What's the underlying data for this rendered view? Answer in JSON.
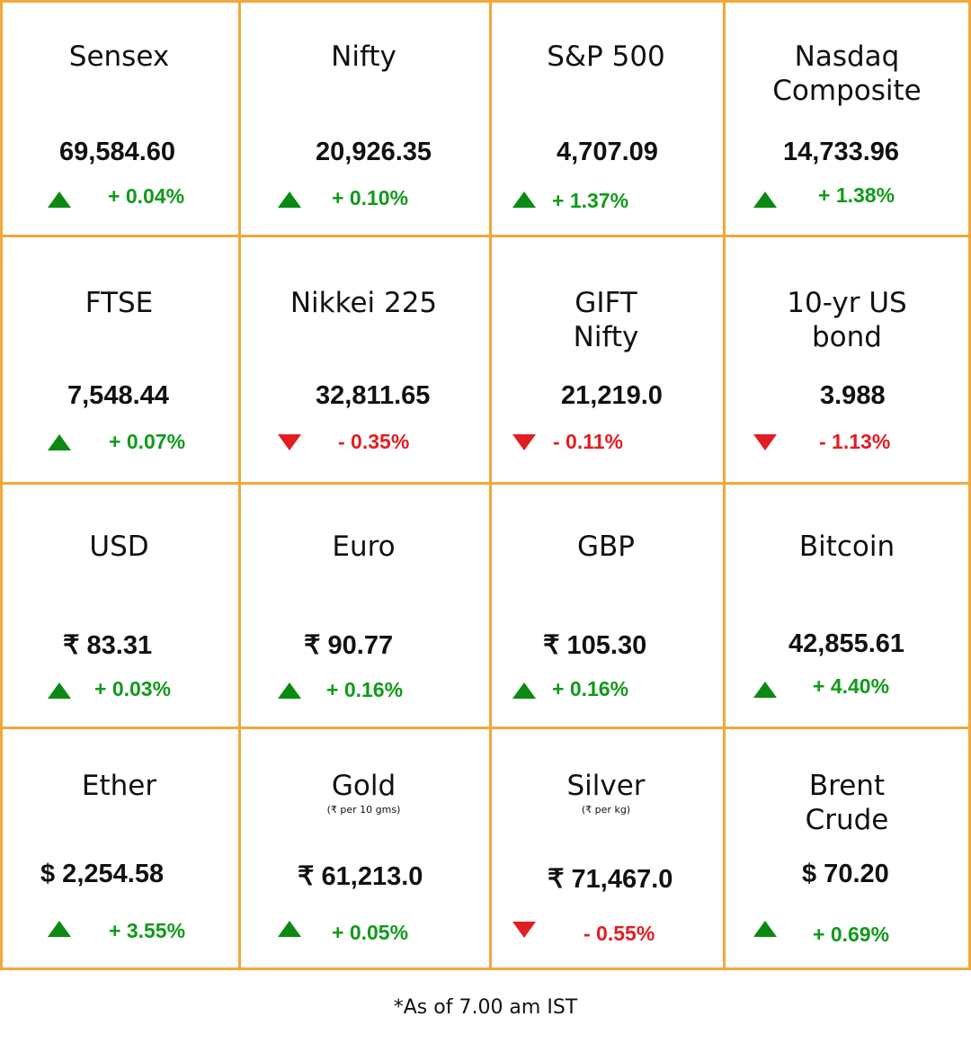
{
  "footer_note": "*As of 7.00 am IST",
  "colors": {
    "grid": "#f2a83b",
    "up": "#119a1a",
    "down": "#e21d22",
    "up_arrow": "#0a8a12"
  },
  "rows": [
    [
      {
        "name": "Sensex",
        "value": "69,584.60",
        "change": "+ 0.04%",
        "direction": "up"
      },
      {
        "name": "Nifty",
        "value": "20,926.35",
        "change": "+ 0.10%",
        "direction": "up"
      },
      {
        "name": "S&P 500",
        "value": "4,707.09",
        "change": "+ 1.37%",
        "direction": "up"
      },
      {
        "name": "Nasdaq\nComposite",
        "value": "14,733.96",
        "change": "+ 1.38%",
        "direction": "up"
      }
    ],
    [
      {
        "name": "FTSE",
        "value": "7,548.44",
        "change": "+ 0.07%",
        "direction": "up"
      },
      {
        "name": "Nikkei 225",
        "value": "32,811.65",
        "change": "- 0.35%",
        "direction": "down"
      },
      {
        "name": "GIFT\nNifty",
        "value": "21,219.0",
        "change": "- 0.11%",
        "direction": "down"
      },
      {
        "name": "10-yr US\nbond",
        "value": "3.988",
        "change": "- 1.13%",
        "direction": "down"
      }
    ],
    [
      {
        "name": "USD",
        "value": "₹ 83.31",
        "change": "+ 0.03%",
        "direction": "up"
      },
      {
        "name": "Euro",
        "value": "₹ 90.77",
        "change": "+ 0.16%",
        "direction": "up"
      },
      {
        "name": "GBP",
        "value": "₹ 105.30",
        "change": "+ 0.16%",
        "direction": "up"
      },
      {
        "name": "Bitcoin",
        "value": "42,855.61",
        "change": "+ 4.40%",
        "direction": "up"
      }
    ],
    [
      {
        "name": "Ether",
        "value": "$ 2,254.58",
        "change": "+ 3.55%",
        "direction": "up"
      },
      {
        "name": "Gold",
        "sub": "(₹ per 10 gms)",
        "value": "₹ 61,213.0",
        "change": "+ 0.05%",
        "direction": "up"
      },
      {
        "name": "Silver",
        "sub": "(₹ per kg)",
        "value": "₹ 71,467.0",
        "change": "- 0.55%",
        "direction": "down"
      },
      {
        "name": "Brent\nCrude",
        "value": "$ 70.20",
        "change": "+ 0.69%",
        "direction": "up"
      }
    ]
  ]
}
